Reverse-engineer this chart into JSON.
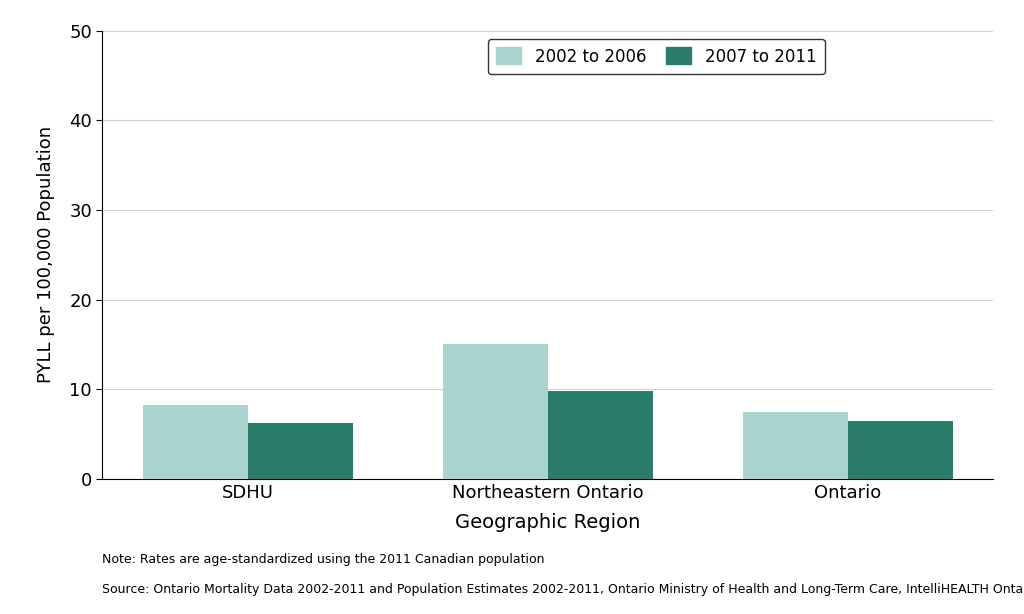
{
  "categories": [
    "SDHU",
    "Northeastern Ontario",
    "Ontario"
  ],
  "values_2002_2006": [
    8.2,
    15.0,
    7.5
  ],
  "values_2007_2011": [
    6.2,
    9.8,
    6.5
  ],
  "color_2002_2006": "#aad3cf",
  "color_2007_2011": "#2a7d6b",
  "ylabel": "PYLL per 100,000 Population",
  "xlabel": "Geographic Region",
  "ylim": [
    0,
    50
  ],
  "yticks": [
    0,
    10,
    20,
    30,
    40,
    50
  ],
  "legend_label_1": "2002 to 2006",
  "legend_label_2": "2007 to 2011",
  "note1": "Note: Rates are age-standardized using the 2011 Canadian population",
  "note2": "Source: Ontario Mortality Data 2002-2011 and Population Estimates 2002-2011, Ontario Ministry of Health and Long-Term Care, IntelliHEALTH Ontario",
  "bar_width": 0.35,
  "background_color": "#ffffff",
  "grid_color": "#d0d0d0"
}
